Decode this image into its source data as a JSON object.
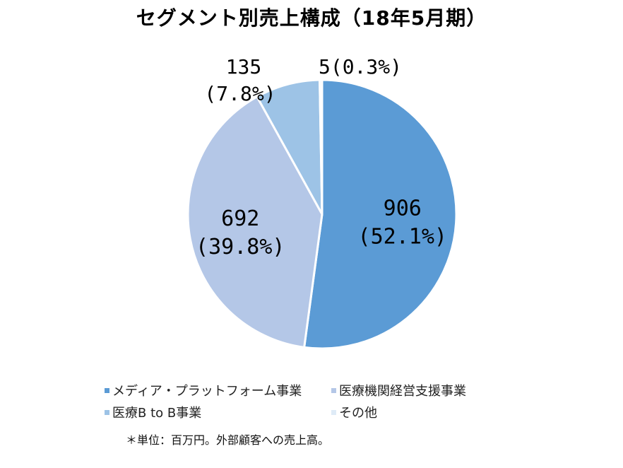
{
  "chart_data": {
    "type": "pie",
    "title": "セグメント別売上構成（18年5月期）",
    "categories": [
      "メディア・プラットフォーム事業",
      "医療機関経営支援事業",
      "医療B to B事業",
      "その他"
    ],
    "values": [
      906,
      692,
      135,
      5
    ],
    "percent_labels": [
      "(52.1%)",
      "(39.8%)",
      "(7.8%)",
      "(0.3%)"
    ],
    "value_labels": [
      "906",
      "692",
      "135",
      "5"
    ],
    "colors": [
      "#5b9bd5",
      "#b4c7e7",
      "#9dc3e6",
      "#deebf7"
    ],
    "legend_position": "bottom"
  },
  "footnote": "＊単位：百万円。外部顧客への売上高。"
}
